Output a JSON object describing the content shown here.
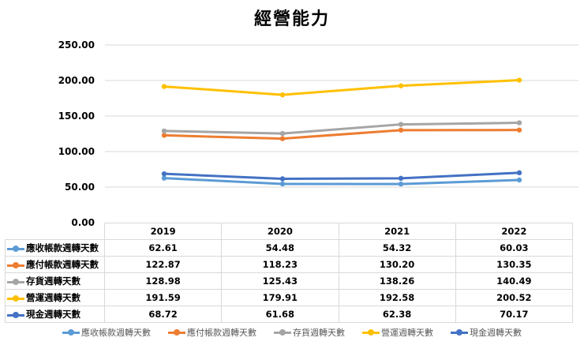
{
  "chart_data": {
    "type": "line",
    "title": "經營能力",
    "xlabel": "",
    "ylabel": "",
    "ylim": [
      0,
      250
    ],
    "yticks": [
      "0.00",
      "50.00",
      "100.00",
      "150.00",
      "200.00",
      "250.00"
    ],
    "categories": [
      "2019",
      "2020",
      "2021",
      "2022"
    ],
    "grid": true,
    "legend": "bottom",
    "data_table": true,
    "series": [
      {
        "name": "應收帳款週轉天數",
        "color": "#5b9bd5",
        "values": [
          62.61,
          54.48,
          54.32,
          60.03
        ],
        "labels": [
          "62.61",
          "54.48",
          "54.32",
          "60.03"
        ]
      },
      {
        "name": "應付帳款週轉天數",
        "color": "#ed7d31",
        "values": [
          122.87,
          118.23,
          130.2,
          130.35
        ],
        "labels": [
          "122.87",
          "118.23",
          "130.20",
          "130.35"
        ]
      },
      {
        "name": "存貨週轉天數",
        "color": "#a5a5a5",
        "values": [
          128.98,
          125.43,
          138.26,
          140.49
        ],
        "labels": [
          "128.98",
          "125.43",
          "138.26",
          "140.49"
        ]
      },
      {
        "name": "營運週轉天數",
        "color": "#ffc000",
        "values": [
          191.59,
          179.91,
          192.58,
          200.52
        ],
        "labels": [
          "191.59",
          "179.91",
          "192.58",
          "200.52"
        ]
      },
      {
        "name": "現金週轉天數",
        "color": "#4472c4",
        "values": [
          68.72,
          61.68,
          62.38,
          70.17
        ],
        "labels": [
          "68.72",
          "61.68",
          "62.38",
          "70.17"
        ]
      }
    ]
  }
}
